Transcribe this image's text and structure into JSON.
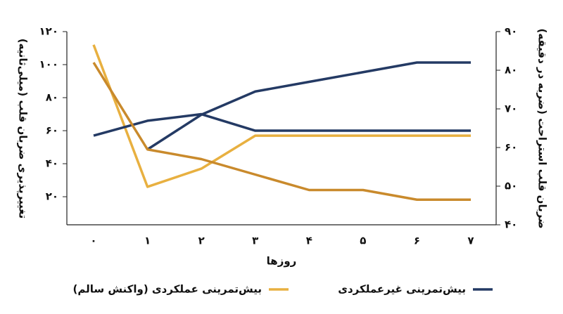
{
  "chart_data": {
    "type": "line",
    "y_label": "تغییرپذیری ضربان قلب (میلی‌ثانیه)",
    "y2_label": "ضربان قلب استراحت (ضربه در دقیقه)",
    "x_label": "روزها",
    "categories": [
      "۰",
      "۱",
      "۲",
      "۳",
      "۴",
      "۵",
      "۶",
      "۷"
    ],
    "ylim": [
      3,
      120
    ],
    "yticks": [
      {
        "value": 20,
        "label": "۲۰"
      },
      {
        "value": 40,
        "label": "۴۰"
      },
      {
        "value": 60,
        "label": "۶۰"
      },
      {
        "value": 80,
        "label": "۸۰"
      },
      {
        "value": 100,
        "label": "۱۰۰"
      },
      {
        "value": 120,
        "label": "۱۲۰"
      }
    ],
    "y2lim": [
      40,
      90
    ],
    "y2ticks": [
      {
        "value": 40,
        "label": "۴۰"
      },
      {
        "value": 50,
        "label": "۵۰"
      },
      {
        "value": 60,
        "label": "۶۰"
      },
      {
        "value": 70,
        "label": "۷۰"
      },
      {
        "value": 80,
        "label": "۸۰"
      },
      {
        "value": 90,
        "label": "۹۰"
      }
    ],
    "legend": "bottom",
    "series": [
      {
        "name": "بیش‌تمرینی غیرعملکردی",
        "color": "#243a64",
        "axis": "y2",
        "values": [
          null,
          59.5,
          68.5,
          74.5,
          77,
          79.5,
          82,
          82
        ]
      },
      {
        "name": "بیش‌تمرینی عملکردی (واکنش سالم)",
        "color": "#e8b040",
        "values": [
          112,
          26,
          37,
          57,
          57,
          57,
          57,
          57
        ]
      },
      {
        "color": "#243a64",
        "values": [
          57,
          66,
          70,
          60,
          60,
          60,
          60,
          60
        ]
      },
      {
        "color": "#c98a2c",
        "axis": "y2",
        "values": [
          82,
          59.5,
          57,
          53,
          49,
          49,
          46.5,
          46.5
        ]
      }
    ]
  }
}
